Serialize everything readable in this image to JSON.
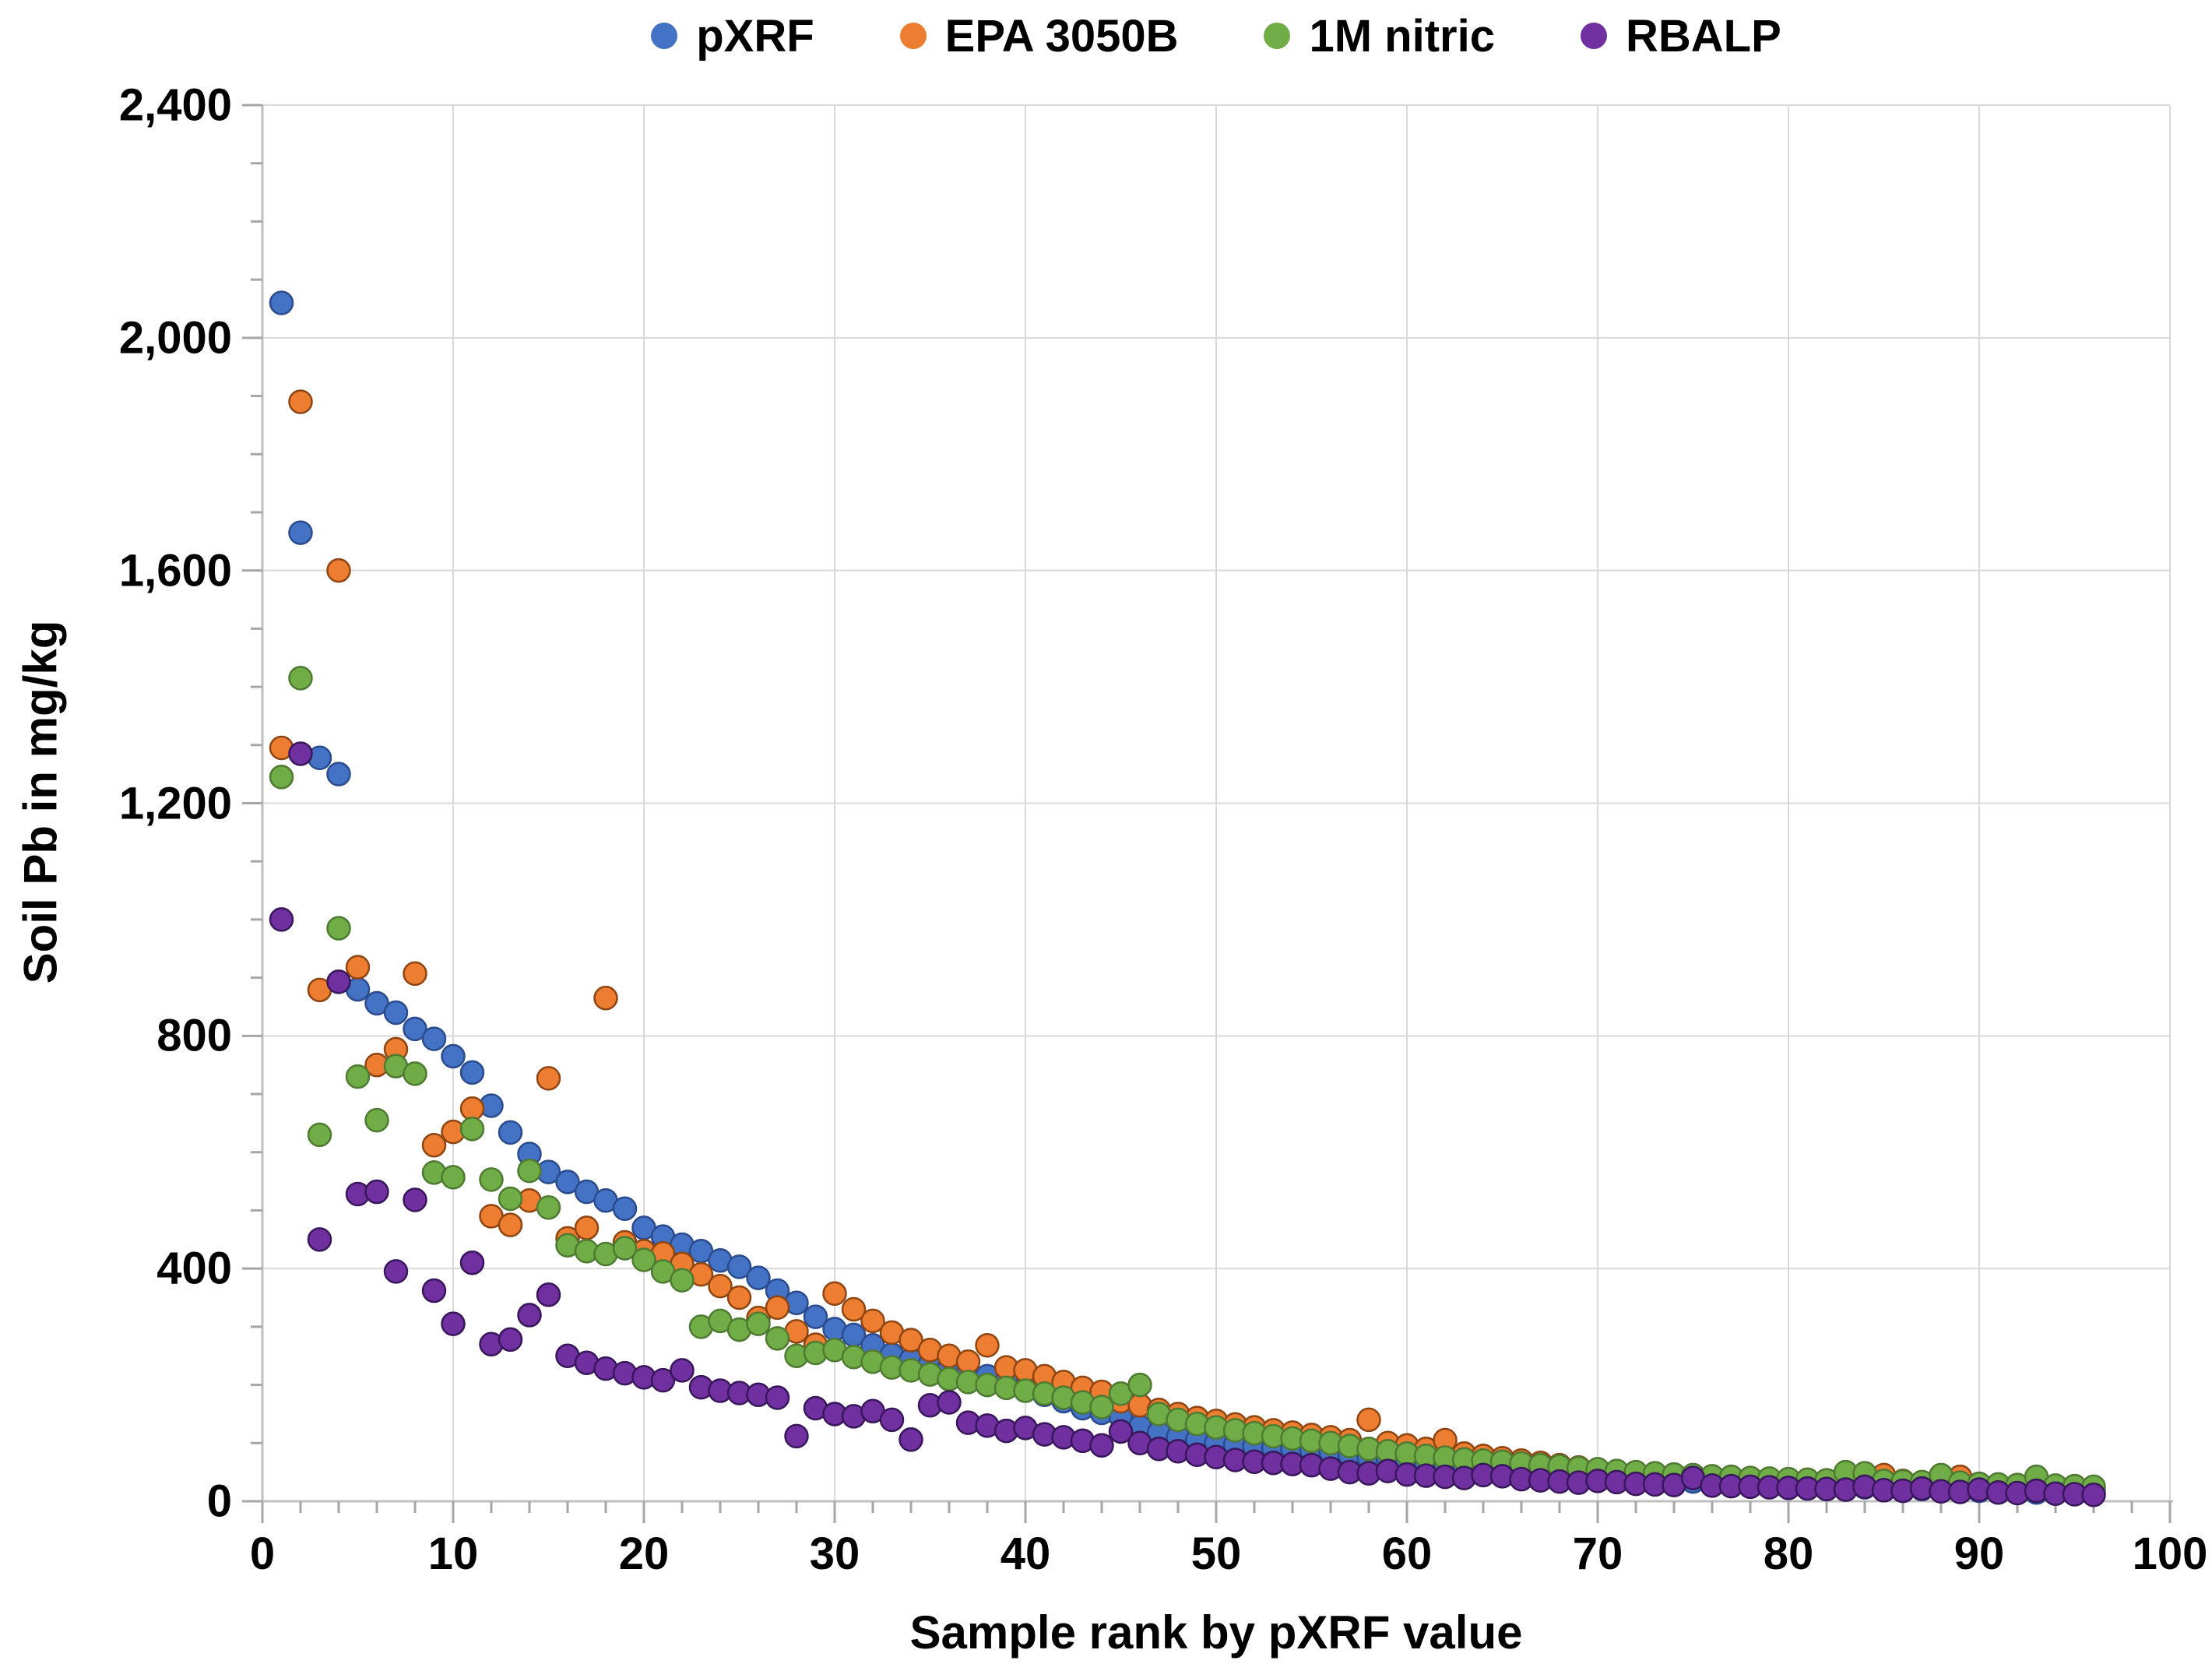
{
  "legend": {
    "items": [
      {
        "label": "pXRF",
        "color": "#4472C4"
      },
      {
        "label": "EPA 3050B",
        "color": "#ED7D31"
      },
      {
        "label": "1M nitric",
        "color": "#70AD47"
      },
      {
        "label": "RBALP",
        "color": "#7030A0"
      }
    ]
  },
  "chart_data": {
    "type": "scatter",
    "title": "",
    "xlabel": "Sample rank by pXRF value",
    "ylabel": "Soil Pb in mg/kg",
    "xlim": [
      0,
      100
    ],
    "ylim": [
      0,
      2400
    ],
    "grid": true,
    "legend_position": "top",
    "x_ticks": [
      {
        "v": 0,
        "label": "0"
      },
      {
        "v": 10,
        "label": "10"
      },
      {
        "v": 20,
        "label": "20"
      },
      {
        "v": 30,
        "label": "30"
      },
      {
        "v": 40,
        "label": "40"
      },
      {
        "v": 50,
        "label": "50"
      },
      {
        "v": 60,
        "label": "60"
      },
      {
        "v": 70,
        "label": "70"
      },
      {
        "v": 80,
        "label": "80"
      },
      {
        "v": 90,
        "label": "90"
      },
      {
        "v": 100,
        "label": "100"
      }
    ],
    "y_ticks": [
      {
        "v": 0,
        "label": "0"
      },
      {
        "v": 400,
        "label": "400"
      },
      {
        "v": 800,
        "label": "800"
      },
      {
        "v": 1200,
        "label": "1,200"
      },
      {
        "v": 1600,
        "label": "1,600"
      },
      {
        "v": 2000,
        "label": "2,000"
      },
      {
        "v": 2400,
        "label": "2,400"
      }
    ],
    "x_minor_step": 2,
    "y_minor_step": 100,
    "x": [
      1,
      2,
      3,
      4,
      5,
      6,
      7,
      8,
      9,
      10,
      11,
      12,
      13,
      14,
      15,
      16,
      17,
      18,
      19,
      20,
      21,
      22,
      23,
      24,
      25,
      26,
      27,
      28,
      29,
      30,
      31,
      32,
      33,
      34,
      35,
      36,
      37,
      38,
      39,
      40,
      41,
      42,
      43,
      44,
      45,
      46,
      47,
      48,
      49,
      50,
      51,
      52,
      53,
      54,
      55,
      56,
      57,
      58,
      59,
      60,
      61,
      62,
      63,
      64,
      65,
      66,
      67,
      68,
      69,
      70,
      71,
      72,
      73,
      74,
      75,
      76,
      77,
      78,
      79,
      80,
      81,
      82,
      83,
      84,
      85,
      86,
      87,
      88,
      89,
      90,
      91,
      92,
      93,
      94,
      95,
      96
    ],
    "series": [
      {
        "name": "pXRF",
        "color": "#4472C4",
        "border": "#2A4B8D",
        "values": [
          2060,
          1665,
          1278,
          1250,
          880,
          856,
          840,
          812,
          795,
          765,
          737,
          680,
          634,
          597,
          566,
          549,
          532,
          517,
          503,
          470,
          455,
          441,
          430,
          414,
          403,
          384,
          362,
          341,
          317,
          296,
          286,
          268,
          252,
          243,
          236,
          228,
          222,
          215,
          205,
          192,
          183,
          172,
          160,
          152,
          145,
          128,
          118,
          110,
          104,
          100,
          97,
          94,
          92,
          90,
          88,
          85,
          80,
          76,
          73,
          70,
          67,
          64,
          61,
          58,
          56,
          53,
          50,
          48,
          45,
          43,
          41,
          39,
          37,
          36,
          34,
          33,
          31,
          30,
          29,
          28,
          27,
          26,
          25,
          24,
          23,
          22,
          21,
          20,
          19,
          18,
          17,
          16,
          15,
          14,
          13,
          12
        ]
      },
      {
        "name": "EPA 3050B",
        "color": "#ED7D31",
        "border": "#8F4511",
        "values": [
          1295,
          1890,
          879,
          1600,
          918,
          750,
          777,
          907,
          612,
          635,
          675,
          490,
          475,
          517,
          727,
          452,
          470,
          865,
          445,
          430,
          426,
          408,
          390,
          370,
          350,
          315,
          333,
          292,
          269,
          357,
          330,
          310,
          290,
          277,
          260,
          250,
          240,
          268,
          230,
          225,
          215,
          205,
          195,
          188,
          172,
          165,
          157,
          150,
          143,
          138,
          132,
          127,
          122,
          118,
          114,
          110,
          105,
          140,
          100,
          96,
          90,
          105,
          82,
          78,
          74,
          70,
          66,
          62,
          58,
          54,
          51,
          48,
          46,
          44,
          42,
          40,
          38,
          36,
          35,
          34,
          33,
          32,
          31,
          30,
          45,
          35,
          28,
          27,
          42,
          26,
          25,
          24,
          28,
          22,
          26,
          20
        ]
      },
      {
        "name": "1M nitric",
        "color": "#70AD47",
        "border": "#4E7A31",
        "values": [
          1245,
          1415,
          630,
          985,
          730,
          655,
          748,
          735,
          565,
          557,
          640,
          553,
          520,
          568,
          505,
          440,
          430,
          425,
          435,
          415,
          395,
          380,
          300,
          310,
          295,
          305,
          280,
          250,
          255,
          260,
          248,
          240,
          230,
          225,
          218,
          210,
          205,
          200,
          195,
          190,
          185,
          178,
          170,
          162,
          185,
          200,
          150,
          140,
          133,
          127,
          122,
          117,
          112,
          108,
          104,
          100,
          95,
          90,
          86,
          82,
          78,
          75,
          72,
          70,
          68,
          65,
          62,
          60,
          57,
          55,
          52,
          50,
          48,
          46,
          45,
          43,
          42,
          40,
          39,
          38,
          37,
          36,
          50,
          48,
          35,
          34,
          33,
          45,
          32,
          30,
          29,
          28,
          42,
          27,
          26,
          25
        ]
      },
      {
        "name": "RBALP",
        "color": "#7030A0",
        "border": "#38175C",
        "values": [
          1000,
          1285,
          450,
          893,
          528,
          532,
          395,
          518,
          362,
          305,
          410,
          270,
          278,
          320,
          355,
          250,
          238,
          228,
          220,
          213,
          208,
          225,
          196,
          190,
          186,
          183,
          178,
          112,
          160,
          150,
          146,
          155,
          140,
          106,
          165,
          170,
          135,
          130,
          121,
          126,
          115,
          110,
          104,
          96,
          120,
          100,
          90,
          86,
          80,
          76,
          71,
          68,
          66,
          64,
          62,
          56,
          50,
          48,
          52,
          46,
          44,
          42,
          40,
          45,
          43,
          38,
          36,
          34,
          32,
          35,
          33,
          30,
          29,
          28,
          40,
          27,
          26,
          25,
          24,
          23,
          22,
          21,
          20,
          25,
          19,
          18,
          22,
          17,
          16,
          20,
          15,
          14,
          18,
          13,
          12,
          11
        ]
      }
    ]
  }
}
